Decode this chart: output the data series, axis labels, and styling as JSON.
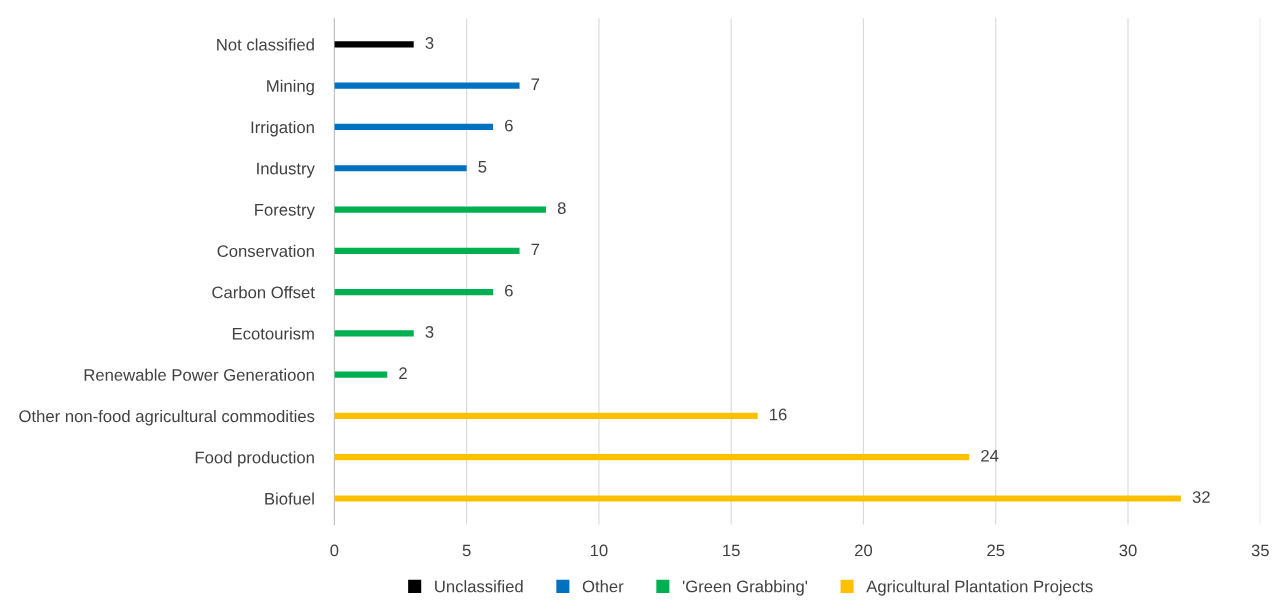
{
  "chart_data": {
    "type": "bar",
    "orientation": "horizontal",
    "categories": [
      "Not classified",
      "Mining",
      "Irrigation",
      "Industry",
      "Forestry",
      "Conservation",
      "Carbon Offset",
      "Ecotourism",
      "Renewable Power Generatioon",
      "Other non-food agricultural commodities",
      "Food production",
      "Biofuel"
    ],
    "series": [
      {
        "name": "Unclassified",
        "color": "#000000",
        "values": [
          3,
          null,
          null,
          null,
          null,
          null,
          null,
          null,
          null,
          null,
          null,
          null
        ]
      },
      {
        "name": "Other",
        "color": "#0070c0",
        "values": [
          null,
          7,
          6,
          5,
          null,
          null,
          null,
          null,
          null,
          null,
          null,
          null
        ]
      },
      {
        "name": "'Green Grabbing'",
        "color": "#00b050",
        "values": [
          null,
          null,
          null,
          null,
          8,
          7,
          6,
          3,
          2,
          null,
          null,
          null
        ]
      },
      {
        "name": "Agricultural Plantation Projects",
        "color": "#ffc000",
        "values": [
          null,
          null,
          null,
          null,
          null,
          null,
          null,
          null,
          null,
          16,
          24,
          32
        ]
      }
    ],
    "xlim": [
      0,
      35
    ],
    "xticks": [
      0,
      5,
      10,
      15,
      20,
      25,
      30,
      35
    ],
    "grid": "x",
    "legend": "bottom",
    "data_labels": true
  }
}
